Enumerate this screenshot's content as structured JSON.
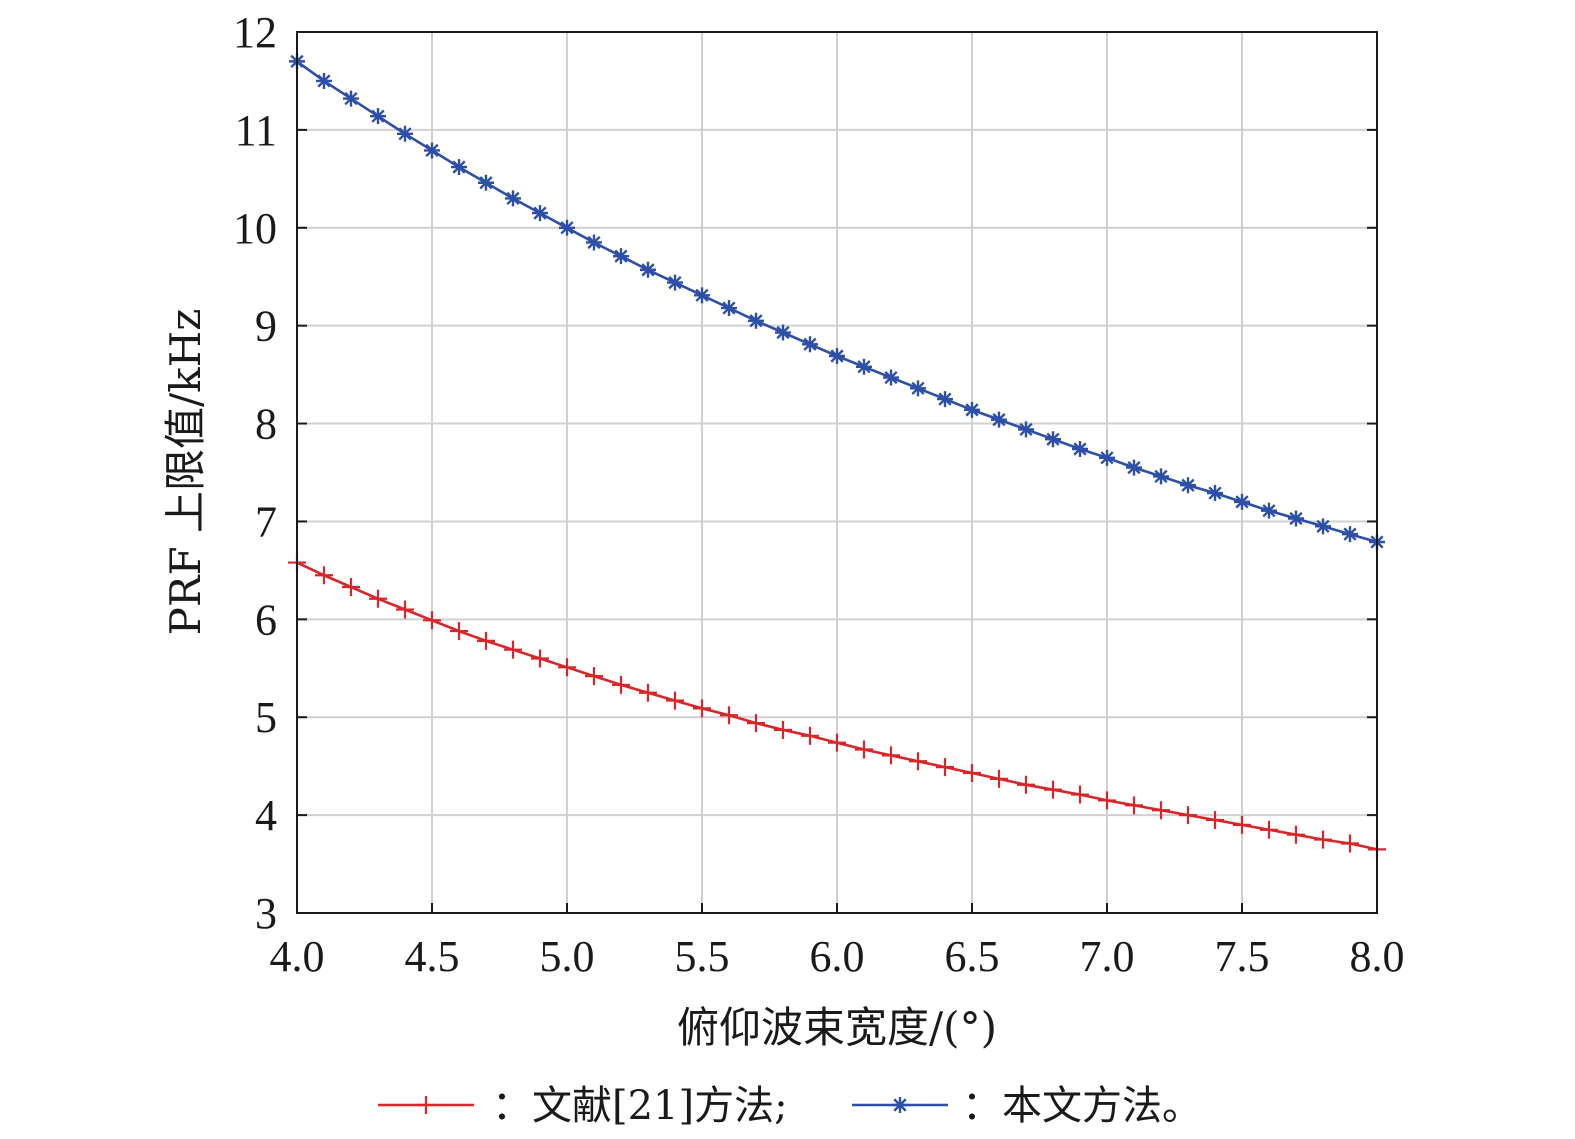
{
  "chart_data": {
    "type": "line",
    "xlabel": "俯仰波束宽度/(°)",
    "ylabel": "PRF 上限值/kHz",
    "xlim": [
      4.0,
      8.0
    ],
    "ylim": [
      3,
      12
    ],
    "xticks": [
      "4.0",
      "4.5",
      "5.0",
      "5.5",
      "6.0",
      "6.5",
      "7.0",
      "7.5",
      "8.0"
    ],
    "yticks": [
      "3",
      "4",
      "5",
      "6",
      "7",
      "8",
      "9",
      "10",
      "11",
      "12"
    ],
    "grid": true,
    "legend_position": "bottom",
    "x": [
      4.0,
      4.1,
      4.2,
      4.3,
      4.4,
      4.5,
      4.6,
      4.7,
      4.8,
      4.9,
      5.0,
      5.1,
      5.2,
      5.3,
      5.4,
      5.5,
      5.6,
      5.7,
      5.8,
      5.9,
      6.0,
      6.1,
      6.2,
      6.3,
      6.4,
      6.5,
      6.6,
      6.7,
      6.8,
      6.9,
      7.0,
      7.1,
      7.2,
      7.3,
      7.4,
      7.5,
      7.6,
      7.7,
      7.8,
      7.9,
      8.0
    ],
    "series": [
      {
        "name": "：文献[21]方法;",
        "color": "#d9262b",
        "marker": "plus",
        "values": [
          6.58,
          6.45,
          6.33,
          6.21,
          6.1,
          5.99,
          5.88,
          5.78,
          5.69,
          5.6,
          5.51,
          5.42,
          5.33,
          5.25,
          5.17,
          5.09,
          5.02,
          4.94,
          4.87,
          4.81,
          4.74,
          4.67,
          4.61,
          4.55,
          4.49,
          4.43,
          4.37,
          4.31,
          4.26,
          4.21,
          4.15,
          4.1,
          4.05,
          4.0,
          3.95,
          3.9,
          3.85,
          3.8,
          3.75,
          3.71,
          3.65
        ]
      },
      {
        "name": "：本文方法。",
        "color": "#2d4fa8",
        "marker": "asterisk",
        "values": [
          11.7,
          11.5,
          11.32,
          11.14,
          10.96,
          10.79,
          10.62,
          10.46,
          10.3,
          10.15,
          10.0,
          9.85,
          9.71,
          9.57,
          9.44,
          9.31,
          9.18,
          9.05,
          8.93,
          8.81,
          8.69,
          8.58,
          8.47,
          8.36,
          8.25,
          8.14,
          8.04,
          7.94,
          7.84,
          7.74,
          7.65,
          7.55,
          7.46,
          7.37,
          7.29,
          7.2,
          7.11,
          7.03,
          6.95,
          6.87,
          6.79
        ]
      }
    ]
  },
  "colors": {
    "grid": "#d0d0d0",
    "axis": "#1a1a1a"
  }
}
